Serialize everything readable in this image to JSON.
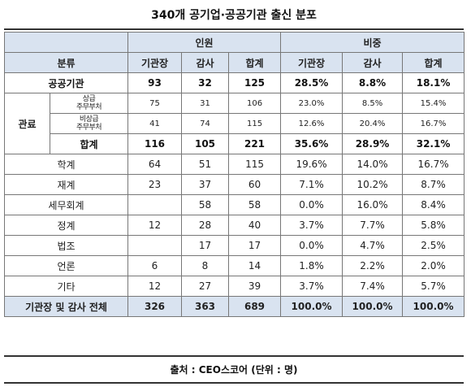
{
  "title": "340개 공기업·공공기관 출신 분포",
  "header": {
    "group_personnel": "인원",
    "group_ratio": "비중",
    "category": "분류",
    "col_head": "기관장",
    "col_audit": "감사",
    "col_total": "합계"
  },
  "rows": {
    "public": {
      "label": "공공기관",
      "n1": "93",
      "n2": "32",
      "n3": "125",
      "p1": "28.5%",
      "p2": "8.8%",
      "p3": "18.1%"
    },
    "gov_group": "관료",
    "gov1": {
      "label1": "상급",
      "label2": "주무부처",
      "n1": "75",
      "n2": "31",
      "n3": "106",
      "p1": "23.0%",
      "p2": "8.5%",
      "p3": "15.4%"
    },
    "gov2": {
      "label1": "비상급",
      "label2": "주무부처",
      "n1": "41",
      "n2": "74",
      "n3": "115",
      "p1": "12.6%",
      "p2": "20.4%",
      "p3": "16.7%"
    },
    "gov_sum": {
      "label": "합계",
      "n1": "116",
      "n2": "105",
      "n3": "221",
      "p1": "35.6%",
      "p2": "28.9%",
      "p3": "32.1%"
    },
    "academia": {
      "label": "학계",
      "n1": "64",
      "n2": "51",
      "n3": "115",
      "p1": "19.6%",
      "p2": "14.0%",
      "p3": "16.7%"
    },
    "business": {
      "label": "재계",
      "n1": "23",
      "n2": "37",
      "n3": "60",
      "p1": "7.1%",
      "p2": "10.2%",
      "p3": "8.7%"
    },
    "tax": {
      "label": "세무회계",
      "n1": "",
      "n2": "58",
      "n3": "58",
      "p1": "0.0%",
      "p2": "16.0%",
      "p3": "8.4%"
    },
    "politics": {
      "label": "정계",
      "n1": "12",
      "n2": "28",
      "n3": "40",
      "p1": "3.7%",
      "p2": "7.7%",
      "p3": "5.8%"
    },
    "law": {
      "label": "법조",
      "n1": "",
      "n2": "17",
      "n3": "17",
      "p1": "0.0%",
      "p2": "4.7%",
      "p3": "2.5%"
    },
    "press": {
      "label": "언론",
      "n1": "6",
      "n2": "8",
      "n3": "14",
      "p1": "1.8%",
      "p2": "2.2%",
      "p3": "2.0%"
    },
    "etc": {
      "label": "기타",
      "n1": "12",
      "n2": "27",
      "n3": "39",
      "p1": "3.7%",
      "p2": "7.4%",
      "p3": "5.7%"
    }
  },
  "total": {
    "label": "기관장 및 감사 전체",
    "n1": "326",
    "n2": "363",
    "n3": "689",
    "p1": "100.0%",
    "p2": "100.0%",
    "p3": "100.0%"
  },
  "source": "출처 : CEO스코어 (단위 : 명)"
}
